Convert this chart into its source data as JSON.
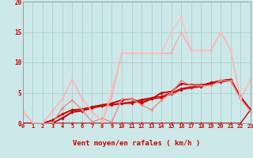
{
  "xlabel": "Vent moyen/en rafales ( km/h )",
  "bg_color": "#cce8e8",
  "grid_color": "#aacccc",
  "xlim": [
    0,
    23
  ],
  "ylim": [
    0,
    20
  ],
  "yticks": [
    0,
    5,
    10,
    15,
    20
  ],
  "xticks": [
    0,
    1,
    2,
    3,
    4,
    5,
    6,
    7,
    8,
    9,
    10,
    11,
    12,
    13,
    14,
    15,
    16,
    17,
    18,
    19,
    20,
    21,
    22,
    23
  ],
  "lines": [
    {
      "x": [
        0,
        1,
        2,
        3,
        4,
        5,
        6,
        7,
        8,
        9,
        10,
        11,
        12,
        13,
        14,
        15,
        16,
        17,
        18,
        19,
        20,
        21,
        22,
        23
      ],
      "y": [
        0,
        0,
        0,
        0,
        0,
        0,
        0,
        0,
        0,
        0,
        0,
        0,
        0,
        0,
        0,
        0,
        0,
        0,
        0,
        0,
        0,
        0,
        0,
        2.2
      ],
      "color": "#cc0000",
      "lw": 1.0,
      "marker": "D",
      "ms": 2.0,
      "alpha": 1.0
    },
    {
      "x": [
        0,
        1,
        2,
        3,
        4,
        5,
        6,
        7,
        8,
        9,
        10,
        11,
        12,
        13,
        14,
        15,
        16,
        17,
        18,
        19,
        20,
        21,
        22,
        23
      ],
      "y": [
        0,
        0,
        0,
        0,
        0.8,
        1.8,
        2.0,
        2.5,
        2.8,
        3.0,
        3.2,
        3.3,
        3.7,
        4.0,
        4.2,
        4.8,
        5.5,
        5.8,
        6.0,
        6.5,
        6.8,
        7.0,
        4.2,
        2.2
      ],
      "color": "#cc0000",
      "lw": 1.0,
      "marker": "D",
      "ms": 2.0,
      "alpha": 1.0
    },
    {
      "x": [
        0,
        1,
        2,
        3,
        4,
        5,
        6,
        7,
        8,
        9,
        10,
        11,
        12,
        13,
        14,
        15,
        16,
        17,
        18,
        19,
        20,
        21,
        22,
        23
      ],
      "y": [
        0,
        0,
        0,
        0,
        0.9,
        1.9,
        2.1,
        2.6,
        2.9,
        3.1,
        3.3,
        3.5,
        3.9,
        4.2,
        4.4,
        5.0,
        5.7,
        6.0,
        6.2,
        6.7,
        7.0,
        7.2,
        4.4,
        2.3
      ],
      "color": "#cc0000",
      "lw": 1.0,
      "marker": "D",
      "ms": 2.0,
      "alpha": 1.0
    },
    {
      "x": [
        0,
        1,
        2,
        3,
        4,
        5,
        6,
        7,
        8,
        9,
        10,
        11,
        12,
        13,
        14,
        15,
        16,
        17,
        18,
        19,
        20,
        21,
        22,
        23
      ],
      "y": [
        0,
        0,
        0,
        0.5,
        1.5,
        2.2,
        2.3,
        2.7,
        3.0,
        3.3,
        3.8,
        4.0,
        3.3,
        4.0,
        5.0,
        5.2,
        6.5,
        6.3,
        6.3,
        6.5,
        7.0,
        7.2,
        4.2,
        2.2
      ],
      "color": "#cc0000",
      "lw": 1.2,
      "marker": "D",
      "ms": 2.0,
      "alpha": 1.0
    },
    {
      "x": [
        0,
        1,
        2,
        3,
        4,
        5,
        6,
        7,
        8,
        9,
        10,
        11,
        12,
        13,
        14,
        15,
        16,
        17,
        18,
        19,
        20,
        21,
        22,
        23
      ],
      "y": [
        0,
        0,
        0,
        0.5,
        1.5,
        2.2,
        2.3,
        2.7,
        3.0,
        3.3,
        3.8,
        4.0,
        3.3,
        4.0,
        5.0,
        5.2,
        6.5,
        6.3,
        6.3,
        6.5,
        7.0,
        7.2,
        4.2,
        2.2
      ],
      "color": "#cc0000",
      "lw": 1.0,
      "marker": "D",
      "ms": 2.0,
      "alpha": 1.0
    },
    {
      "x": [
        0,
        1,
        2,
        3,
        4,
        5,
        6,
        7,
        8,
        9,
        10,
        11,
        12,
        13,
        14,
        15,
        16,
        17,
        18,
        19,
        20,
        21,
        22,
        23
      ],
      "y": [
        2.0,
        0,
        0,
        0,
        2.5,
        3.8,
        2.2,
        0.2,
        0.8,
        0.2,
        4.0,
        4.0,
        3.0,
        2.2,
        3.8,
        5.0,
        7.0,
        6.2,
        6.2,
        6.2,
        7.0,
        7.0,
        4.0,
        2.0
      ],
      "color": "#ee8888",
      "lw": 1.0,
      "marker": "D",
      "ms": 2.0,
      "alpha": 1.0
    },
    {
      "x": [
        0,
        1,
        2,
        3,
        4,
        5,
        6,
        7,
        8,
        9,
        10,
        11,
        12,
        13,
        14,
        15,
        16,
        17,
        18,
        19,
        20,
        21,
        22,
        23
      ],
      "y": [
        2.0,
        0,
        0,
        2.0,
        4.0,
        7.2,
        4.0,
        2.0,
        0.2,
        4.5,
        11.5,
        11.5,
        11.5,
        11.5,
        11.5,
        11.5,
        15.0,
        12.0,
        12.0,
        12.0,
        15.0,
        12.0,
        4.0,
        7.2
      ],
      "color": "#ffaaaa",
      "lw": 1.0,
      "marker": "D",
      "ms": 2.0,
      "alpha": 1.0
    },
    {
      "x": [
        0,
        1,
        2,
        3,
        4,
        5,
        6,
        7,
        8,
        9,
        10,
        11,
        12,
        13,
        14,
        15,
        16,
        17,
        18,
        19,
        20,
        21,
        22,
        23
      ],
      "y": [
        2.0,
        0,
        0,
        2.0,
        4.0,
        7.2,
        4.0,
        2.0,
        0.2,
        5.5,
        11.5,
        11.5,
        11.5,
        11.5,
        11.5,
        15.0,
        17.5,
        12.0,
        12.0,
        12.0,
        15.0,
        12.0,
        4.0,
        7.2
      ],
      "color": "#ffbbbb",
      "lw": 1.0,
      "marker": "D",
      "ms": 2.0,
      "alpha": 0.85
    }
  ],
  "wind_arrows": {
    "x": [
      0,
      1,
      2,
      3,
      4,
      5,
      6,
      7,
      8,
      9,
      10,
      11,
      12,
      13,
      14,
      15,
      16,
      17,
      18,
      19,
      20,
      21,
      22,
      23
    ],
    "angles_deg": [
      225,
      270,
      225,
      225,
      225,
      315,
      315,
      315,
      270,
      270,
      270,
      270,
      270,
      270,
      270,
      270,
      270,
      270,
      270,
      270,
      270,
      270,
      270,
      225
    ]
  }
}
